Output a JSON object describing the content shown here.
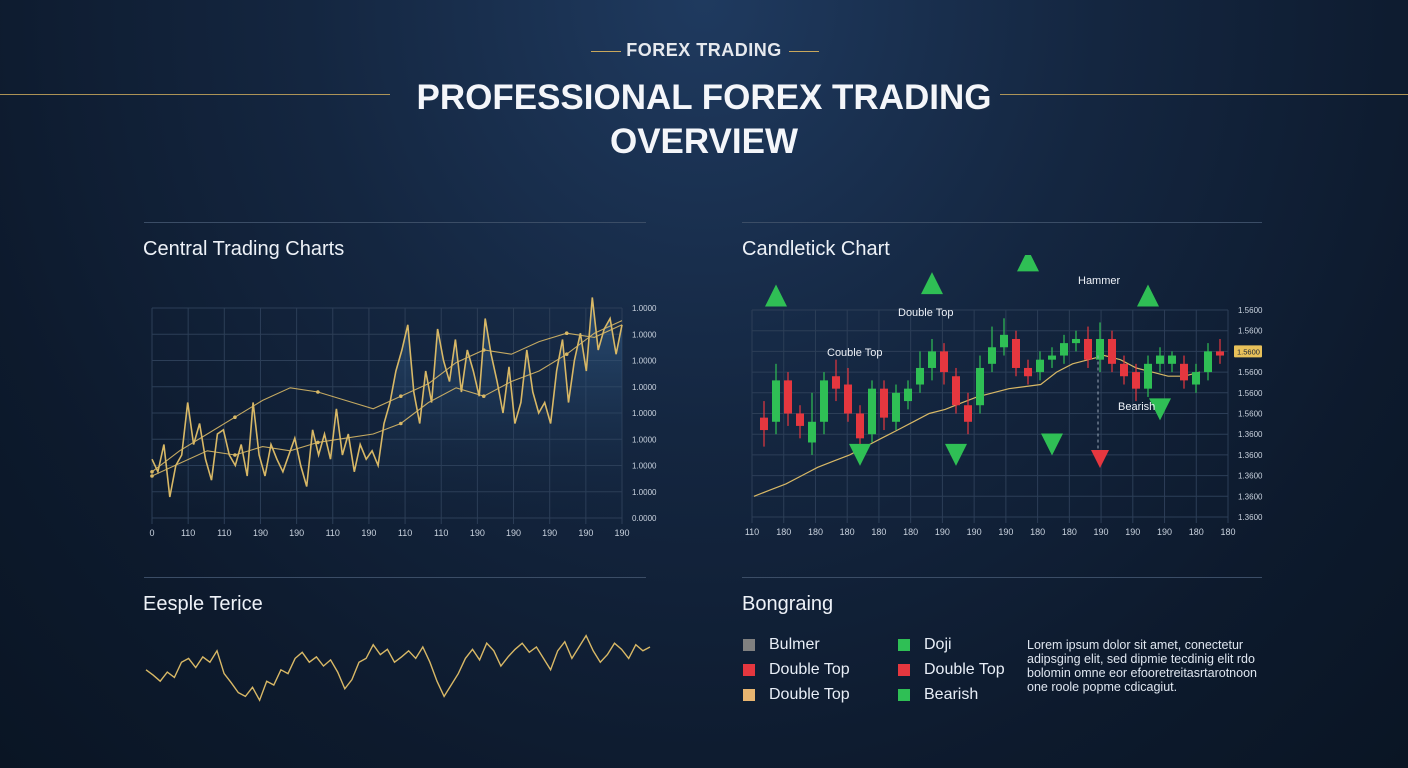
{
  "header": {
    "kicker": "FOREX TRADING",
    "title_line1": "PROFESSIONAL FOREX TRADING",
    "title_line2": "OVERVIEW"
  },
  "sections": {
    "central": "Central Trading Charts",
    "candle": "Candletick Chart",
    "eesple": "Eesple Terice",
    "bongraing": "Bongraing"
  },
  "colors": {
    "gold": "#d8b866",
    "bull": "#2fbf55",
    "bear": "#e5373f",
    "grid": "#2c3e57"
  },
  "chart_data": [
    {
      "type": "line",
      "title": "Central Trading Charts",
      "x_tick_labels": [
        "0",
        "110",
        "110",
        "190",
        "190",
        "110",
        "190",
        "110",
        "110",
        "190",
        "190",
        "190",
        "190",
        "190"
      ],
      "y_tick_labels": [
        "1.0000",
        "1.0000",
        "1.0000",
        "1.0000",
        "1.0000",
        "1.0000",
        "1.0000",
        "1.0000",
        "0.0000"
      ],
      "series": [
        {
          "values": [
            0.28,
            0.22,
            0.35,
            0.1,
            0.25,
            0.3,
            0.55,
            0.35,
            0.45,
            0.28,
            0.18,
            0.4,
            0.42,
            0.3,
            0.25,
            0.35,
            0.2,
            0.55,
            0.3,
            0.2,
            0.35,
            0.28,
            0.22,
            0.3,
            0.38,
            0.25,
            0.15,
            0.42,
            0.3,
            0.4,
            0.28,
            0.52,
            0.3,
            0.4,
            0.22,
            0.35,
            0.28,
            0.32,
            0.25,
            0.45,
            0.55,
            0.7,
            0.8,
            0.92,
            0.6,
            0.45,
            0.7,
            0.55,
            0.9,
            0.75,
            0.65,
            0.85,
            0.6,
            0.8,
            0.7,
            0.58,
            0.95,
            0.78,
            0.65,
            0.5,
            0.72,
            0.45,
            0.55,
            0.8,
            0.6,
            0.5,
            0.55,
            0.45,
            0.7,
            0.85,
            0.55,
            0.75,
            0.88,
            0.7,
            1.05,
            0.8,
            0.9,
            0.95,
            0.78,
            0.92
          ]
        },
        {
          "values": [
            0.22,
            0.32,
            0.4,
            0.48,
            0.56,
            0.62,
            0.6,
            0.56,
            0.52,
            0.58,
            0.64,
            0.74,
            0.8,
            0.78,
            0.84,
            0.88,
            0.86,
            0.92
          ]
        },
        {
          "values": [
            0.2,
            0.26,
            0.32,
            0.3,
            0.34,
            0.32,
            0.36,
            0.38,
            0.4,
            0.45,
            0.55,
            0.62,
            0.58,
            0.65,
            0.7,
            0.78,
            0.88,
            0.94
          ]
        }
      ]
    },
    {
      "type": "candlestick",
      "title": "Candletick Chart",
      "x_tick_labels": [
        "110",
        "180",
        "180",
        "180",
        "180",
        "180",
        "190",
        "190",
        "190",
        "180",
        "180",
        "190",
        "190",
        "190",
        "180",
        "180"
      ],
      "y_tick_labels": [
        "1.5600",
        "1.5600",
        "1.5600",
        "1.5600",
        "1.5600",
        "1.5600",
        "1.3600",
        "1.3600",
        "1.3600",
        "1.3600",
        "1.3600"
      ],
      "highlighted_tick": "1.5600",
      "candles": [
        {
          "o": 0.42,
          "c": 0.48,
          "h": 0.56,
          "l": 0.34,
          "bull": false
        },
        {
          "o": 0.46,
          "c": 0.66,
          "h": 0.74,
          "l": 0.4,
          "bull": true
        },
        {
          "o": 0.66,
          "c": 0.5,
          "h": 0.7,
          "l": 0.44,
          "bull": false
        },
        {
          "o": 0.5,
          "c": 0.44,
          "h": 0.54,
          "l": 0.38,
          "bull": false
        },
        {
          "o": 0.36,
          "c": 0.46,
          "h": 0.6,
          "l": 0.3,
          "bull": true
        },
        {
          "o": 0.46,
          "c": 0.66,
          "h": 0.7,
          "l": 0.4,
          "bull": true
        },
        {
          "o": 0.62,
          "c": 0.68,
          "h": 0.76,
          "l": 0.56,
          "bull": false
        },
        {
          "o": 0.64,
          "c": 0.5,
          "h": 0.72,
          "l": 0.46,
          "bull": false
        },
        {
          "o": 0.5,
          "c": 0.38,
          "h": 0.54,
          "l": 0.34,
          "bull": false
        },
        {
          "o": 0.4,
          "c": 0.62,
          "h": 0.66,
          "l": 0.36,
          "bull": true
        },
        {
          "o": 0.62,
          "c": 0.48,
          "h": 0.66,
          "l": 0.42,
          "bull": false
        },
        {
          "o": 0.46,
          "c": 0.6,
          "h": 0.64,
          "l": 0.42,
          "bull": true
        },
        {
          "o": 0.56,
          "c": 0.62,
          "h": 0.66,
          "l": 0.52,
          "bull": true
        },
        {
          "o": 0.64,
          "c": 0.72,
          "h": 0.8,
          "l": 0.6,
          "bull": true
        },
        {
          "o": 0.72,
          "c": 0.8,
          "h": 0.86,
          "l": 0.66,
          "bull": true
        },
        {
          "o": 0.8,
          "c": 0.7,
          "h": 0.84,
          "l": 0.64,
          "bull": false
        },
        {
          "o": 0.68,
          "c": 0.54,
          "h": 0.72,
          "l": 0.5,
          "bull": false
        },
        {
          "o": 0.54,
          "c": 0.46,
          "h": 0.6,
          "l": 0.4,
          "bull": false
        },
        {
          "o": 0.54,
          "c": 0.72,
          "h": 0.78,
          "l": 0.5,
          "bull": true
        },
        {
          "o": 0.74,
          "c": 0.82,
          "h": 0.92,
          "l": 0.7,
          "bull": true
        },
        {
          "o": 0.82,
          "c": 0.88,
          "h": 0.96,
          "l": 0.78,
          "bull": true
        },
        {
          "o": 0.86,
          "c": 0.72,
          "h": 0.9,
          "l": 0.68,
          "bull": false
        },
        {
          "o": 0.72,
          "c": 0.68,
          "h": 0.76,
          "l": 0.64,
          "bull": false
        },
        {
          "o": 0.7,
          "c": 0.76,
          "h": 0.8,
          "l": 0.66,
          "bull": true
        },
        {
          "o": 0.76,
          "c": 0.78,
          "h": 0.82,
          "l": 0.72,
          "bull": true
        },
        {
          "o": 0.78,
          "c": 0.84,
          "h": 0.88,
          "l": 0.74,
          "bull": true
        },
        {
          "o": 0.84,
          "c": 0.86,
          "h": 0.9,
          "l": 0.8,
          "bull": true
        },
        {
          "o": 0.86,
          "c": 0.76,
          "h": 0.92,
          "l": 0.72,
          "bull": false
        },
        {
          "o": 0.76,
          "c": 0.86,
          "h": 0.94,
          "l": 0.7,
          "bull": true
        },
        {
          "o": 0.86,
          "c": 0.74,
          "h": 0.9,
          "l": 0.7,
          "bull": false
        },
        {
          "o": 0.74,
          "c": 0.68,
          "h": 0.78,
          "l": 0.64,
          "bull": false
        },
        {
          "o": 0.7,
          "c": 0.62,
          "h": 0.74,
          "l": 0.56,
          "bull": false
        },
        {
          "o": 0.62,
          "c": 0.74,
          "h": 0.78,
          "l": 0.58,
          "bull": true
        },
        {
          "o": 0.74,
          "c": 0.78,
          "h": 0.82,
          "l": 0.7,
          "bull": true
        },
        {
          "o": 0.78,
          "c": 0.74,
          "h": 0.8,
          "l": 0.7,
          "bull": true
        },
        {
          "o": 0.74,
          "c": 0.66,
          "h": 0.78,
          "l": 0.62,
          "bull": false
        },
        {
          "o": 0.64,
          "c": 0.7,
          "h": 0.74,
          "l": 0.6,
          "bull": true
        },
        {
          "o": 0.7,
          "c": 0.8,
          "h": 0.84,
          "l": 0.66,
          "bull": true
        },
        {
          "o": 0.8,
          "c": 0.78,
          "h": 0.86,
          "l": 0.74,
          "bull": false
        }
      ],
      "ma_values": [
        0.1,
        0.13,
        0.16,
        0.2,
        0.24,
        0.27,
        0.3,
        0.34,
        0.38,
        0.42,
        0.46,
        0.5,
        0.52,
        0.55,
        0.58,
        0.6,
        0.62,
        0.63,
        0.64,
        0.7,
        0.74,
        0.76,
        0.78,
        0.76,
        0.72,
        0.7,
        0.68,
        0.68,
        0.7
      ],
      "annotations": [
        {
          "text": "Hammer"
        },
        {
          "text": "Double Top"
        },
        {
          "text": "Couble Top"
        },
        {
          "text": "Bearish"
        }
      ],
      "markers": [
        {
          "dir": "up",
          "color": "bull",
          "idx": 1,
          "val": 1.07
        },
        {
          "dir": "up",
          "color": "bull",
          "idx": 14,
          "val": 1.13
        },
        {
          "dir": "up",
          "color": "bull",
          "idx": 22,
          "val": 1.24
        },
        {
          "dir": "up",
          "color": "bull",
          "idx": 32,
          "val": 1.07
        },
        {
          "dir": "down",
          "color": "bull",
          "idx": 8,
          "val": 0.3
        },
        {
          "dir": "down",
          "color": "bull",
          "idx": 16,
          "val": 0.3
        },
        {
          "dir": "down",
          "color": "bull",
          "idx": 24,
          "val": 0.35
        },
        {
          "dir": "down",
          "color": "bull",
          "idx": 33,
          "val": 0.52
        },
        {
          "dir": "down",
          "color": "bear",
          "idx": 28,
          "val": 0.28
        }
      ]
    },
    {
      "type": "line",
      "title": "Eesple Terice",
      "series": [
        {
          "values": [
            0.45,
            0.38,
            0.3,
            0.42,
            0.35,
            0.55,
            0.6,
            0.48,
            0.62,
            0.55,
            0.7,
            0.4,
            0.28,
            0.15,
            0.1,
            0.22,
            0.05,
            0.3,
            0.25,
            0.45,
            0.4,
            0.6,
            0.68,
            0.55,
            0.62,
            0.5,
            0.58,
            0.42,
            0.2,
            0.32,
            0.55,
            0.6,
            0.78,
            0.65,
            0.72,
            0.55,
            0.62,
            0.7,
            0.6,
            0.75,
            0.55,
            0.3,
            0.1,
            0.25,
            0.4,
            0.6,
            0.72,
            0.58,
            0.8,
            0.7,
            0.5,
            0.62,
            0.72,
            0.8,
            0.68,
            0.75,
            0.6,
            0.45,
            0.7,
            0.82,
            0.6,
            0.75,
            0.9,
            0.7,
            0.55,
            0.65,
            0.8,
            0.72,
            0.6,
            0.78,
            0.7,
            0.75
          ]
        }
      ]
    }
  ],
  "legend": {
    "title": "Bongraing",
    "col1": [
      {
        "label": "Bulmer",
        "color": "#808080"
      },
      {
        "label": "Double Top",
        "color": "#e5373f"
      },
      {
        "label": "Double Top",
        "color": "#e8b570"
      }
    ],
    "col2": [
      {
        "label": "Doji",
        "color": "#2fbf55"
      },
      {
        "label": "Double Top",
        "color": "#e5373f"
      },
      {
        "label": "Bearish",
        "color": "#2fbf55"
      }
    ],
    "lorem_lines": [
      "Lorem ipsum dolor sit amet, conectetur",
      "adipsging elit, sed dipmie tecdinig elit rdo",
      "bolomin omne eor efooretreitasrtarotnoon",
      "one roole popme cdicagiut."
    ]
  }
}
